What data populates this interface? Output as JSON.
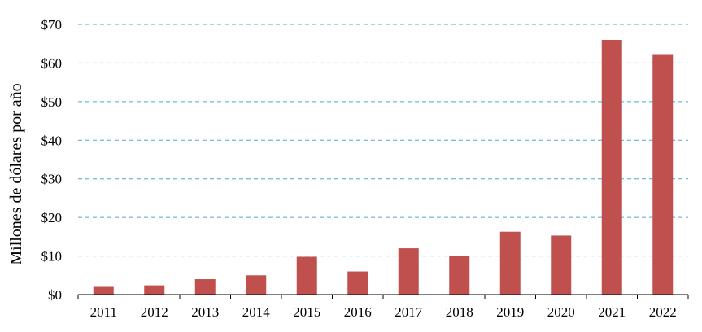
{
  "chart_data": {
    "type": "bar",
    "title": "",
    "xlabel": "",
    "ylabel": "Millones de dólares por año",
    "categories": [
      "2011",
      "2012",
      "2013",
      "2014",
      "2015",
      "2016",
      "2017",
      "2018",
      "2019",
      "2020",
      "2021",
      "2022"
    ],
    "values": [
      2,
      2.4,
      4,
      5,
      9.8,
      6,
      12,
      10,
      16.3,
      15.3,
      66,
      62.3
    ],
    "ylim": [
      0,
      70
    ],
    "yticks": [
      0,
      10,
      20,
      30,
      40,
      50,
      60,
      70
    ],
    "ytick_labels": [
      "$0",
      "$10",
      "$20",
      "$30",
      "$40",
      "$50",
      "$60",
      "$70"
    ],
    "grid": "horizontal-dashed",
    "legend": "none",
    "colors": {
      "bar": "#c0504d",
      "grid": "#4bacc6",
      "axis": "#000000"
    }
  }
}
